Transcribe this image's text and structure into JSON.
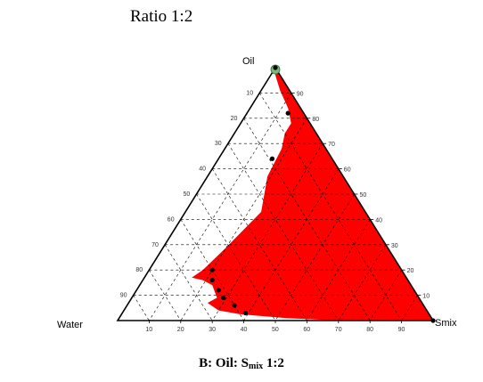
{
  "header": {
    "title": "Ratio 1:2"
  },
  "caption": {
    "prefix": "B: Oil: S",
    "sub": "mix",
    "suffix": " 1:2"
  },
  "chart_data": {
    "type": "ternary",
    "vertices": {
      "top": "Oil",
      "left": "Water",
      "right": "Smix"
    },
    "ticks": [
      10,
      20,
      30,
      40,
      50,
      60,
      70,
      80,
      90
    ],
    "grid": true,
    "colors": {
      "region": "#ff0000",
      "point": "#000000",
      "start_marker": "#7ab87a"
    },
    "region_boundary": [
      {
        "oil": 100,
        "water": 0,
        "smix": 0
      },
      {
        "oil": 97,
        "water": 1.5,
        "smix": 1.5
      },
      {
        "oil": 91,
        "water": 3,
        "smix": 6
      },
      {
        "oil": 84,
        "water": 4,
        "smix": 12
      },
      {
        "oil": 78,
        "water": 6,
        "smix": 16
      },
      {
        "oil": 74,
        "water": 10,
        "smix": 16
      },
      {
        "oil": 68,
        "water": 14,
        "smix": 18
      },
      {
        "oil": 57,
        "water": 24,
        "smix": 19
      },
      {
        "oil": 43,
        "water": 33,
        "smix": 24
      },
      {
        "oil": 29,
        "water": 51,
        "smix": 20
      },
      {
        "oil": 20,
        "water": 63,
        "smix": 17
      },
      {
        "oil": 17,
        "water": 68,
        "smix": 15
      },
      {
        "oil": 16,
        "water": 65,
        "smix": 19
      },
      {
        "oil": 14,
        "water": 63,
        "smix": 23
      },
      {
        "oil": 9,
        "water": 64,
        "smix": 27
      },
      {
        "oil": 7,
        "water": 68,
        "smix": 25
      },
      {
        "oil": 4,
        "water": 66,
        "smix": 30
      },
      {
        "oil": 2.5,
        "water": 60,
        "smix": 37.5
      },
      {
        "oil": 1,
        "water": 46,
        "smix": 53
      },
      {
        "oil": 0,
        "water": 30,
        "smix": 70
      },
      {
        "oil": 0,
        "water": 0,
        "smix": 100
      }
    ],
    "points": [
      {
        "oil": 100,
        "water": 0,
        "smix": 0,
        "marker": "start"
      },
      {
        "oil": 82,
        "water": 5,
        "smix": 13
      },
      {
        "oil": 64,
        "water": 19,
        "smix": 17
      },
      {
        "oil": 20,
        "water": 60,
        "smix": 20
      },
      {
        "oil": 16,
        "water": 62,
        "smix": 22
      },
      {
        "oil": 12,
        "water": 62,
        "smix": 26
      },
      {
        "oil": 9,
        "water": 62,
        "smix": 29
      },
      {
        "oil": 6,
        "water": 60,
        "smix": 34
      },
      {
        "oil": 3,
        "water": 58,
        "smix": 39
      },
      {
        "oil": 0,
        "water": 0,
        "smix": 100
      }
    ]
  }
}
